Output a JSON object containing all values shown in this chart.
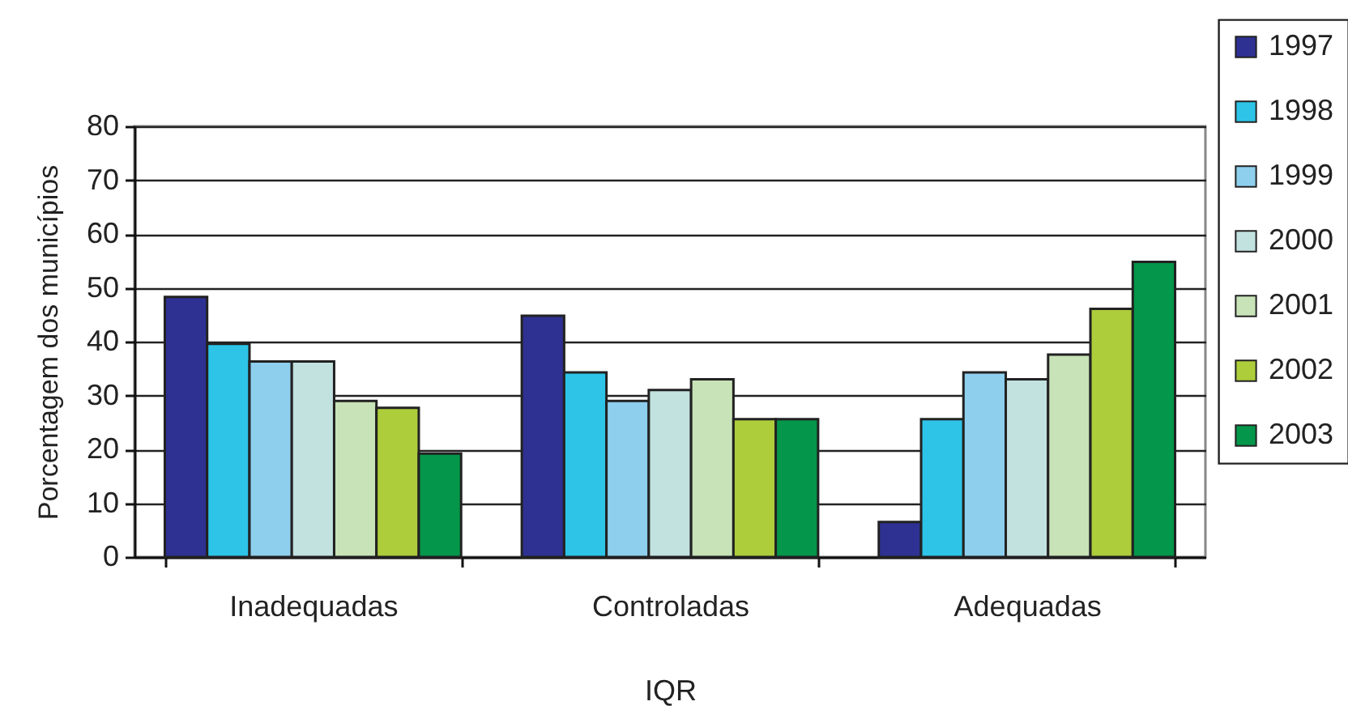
{
  "chart_data": {
    "type": "bar",
    "xlabel": "IQR",
    "ylabel": "Porcentagem dos municípios",
    "categories": [
      "Inadequadas",
      "Controladas",
      "Adequadas"
    ],
    "series": [
      {
        "name": "1997",
        "color": "#2e3192",
        "values": [
          48.3,
          44.8,
          6.5
        ]
      },
      {
        "name": "1998",
        "color": "#2ec4e8",
        "values": [
          39.6,
          34.3,
          25.6
        ]
      },
      {
        "name": "1999",
        "color": "#8ecfee",
        "values": [
          36.3,
          29,
          34.3
        ]
      },
      {
        "name": "2000",
        "color": "#c2e2e0",
        "values": [
          36.3,
          31,
          33
        ]
      },
      {
        "name": "2001",
        "color": "#c8e3b8",
        "values": [
          29,
          33,
          37.6
        ]
      },
      {
        "name": "2002",
        "color": "#adcd3b",
        "values": [
          27.7,
          25.6,
          46.1
        ]
      },
      {
        "name": "2003",
        "color": "#04964a",
        "values": [
          19.2,
          25.6,
          54.8
        ]
      }
    ],
    "ylim": [
      0,
      80
    ],
    "yticks": [
      0,
      10,
      20,
      30,
      40,
      50,
      60,
      70,
      80
    ],
    "grid": "y",
    "legend": "right"
  }
}
